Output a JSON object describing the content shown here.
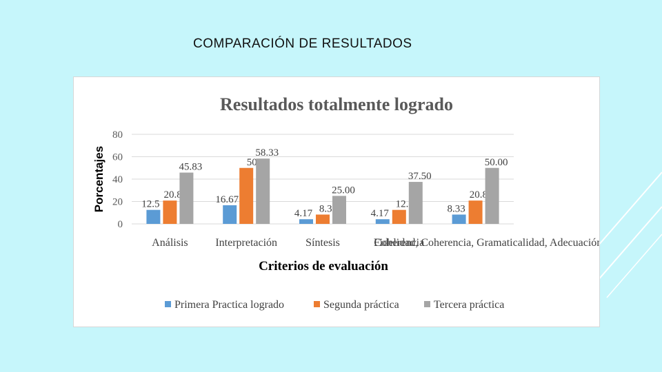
{
  "slide": {
    "title": "COMPARACIÓN DE RESULTADOS"
  },
  "colors": {
    "background": "#c6f6fb",
    "decor_lines": "#ffffff",
    "series": [
      "#5b9bd5",
      "#ed7d31",
      "#a5a5a5"
    ],
    "gridline": "#d9d9d9"
  },
  "chart_data": {
    "type": "bar",
    "title": "Resultados totalmente logrado",
    "xlabel": "Criterios de evaluación",
    "ylabel": "Porcentajes",
    "ylim": [
      0,
      80
    ],
    "yticks": [
      "0",
      "20",
      "40",
      "60",
      "80"
    ],
    "grid": true,
    "legend_position": "bottom",
    "categories": [
      "Análisis",
      "Interpretación",
      "Síntesis",
      "Coherencia",
      "Fidelidad, Coherencia, Gramaticalidad, Adecuación"
    ],
    "series": [
      {
        "name": "Primera Practica  logrado",
        "values": [
          12.5,
          16.67,
          4.17,
          4.17,
          8.33
        ],
        "labels": [
          "12.5",
          "16.67",
          "4.17",
          "4.17",
          "8.33"
        ]
      },
      {
        "name": "Segunda práctica",
        "values": [
          20.83,
          50,
          8.33,
          12.5,
          20.83
        ],
        "labels": [
          "20.83",
          "50",
          "8.33",
          "12.5",
          "20.83"
        ]
      },
      {
        "name": "Tercera práctica",
        "values": [
          45.83,
          58.33,
          25.0,
          37.5,
          50.0
        ],
        "labels": [
          "45.83",
          "58.33",
          "25.00",
          "37.50",
          "50.00"
        ]
      }
    ]
  }
}
